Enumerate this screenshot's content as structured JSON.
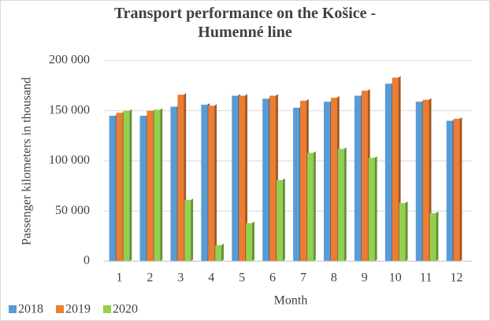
{
  "chart_data": {
    "type": "bar",
    "title": "Transport performance on the Košice - Humenné line",
    "x_label": "Month",
    "y_label": "Passenger kilometers in thousand",
    "categories": [
      "1",
      "2",
      "3",
      "4",
      "5",
      "6",
      "7",
      "8",
      "9",
      "10",
      "11",
      "12"
    ],
    "series": [
      {
        "name": "2018",
        "color": "#5b9bd5",
        "values": [
          145000,
          145000,
          154000,
          156000,
          165000,
          162000,
          153000,
          159000,
          165000,
          177000,
          159000,
          140000
        ]
      },
      {
        "name": "2019",
        "color": "#ed7d31",
        "values": [
          148000,
          150000,
          166000,
          155000,
          165000,
          165000,
          160000,
          163000,
          170000,
          183000,
          161000,
          142000
        ]
      },
      {
        "name": "2020",
        "color": "#92d050",
        "values": [
          150000,
          151000,
          61000,
          16000,
          38000,
          81000,
          108000,
          112000,
          103000,
          58000,
          48000,
          null
        ]
      }
    ],
    "ylim": [
      0,
      200000
    ],
    "yticks": [
      0,
      {
        "value": 50000,
        "label": "50 000"
      },
      {
        "value": 100000,
        "label": "100 000"
      },
      {
        "value": 150000,
        "label": "150 000"
      },
      {
        "value": 200000,
        "label": "200 000"
      }
    ],
    "grid": true,
    "legend": "bottom-left"
  }
}
